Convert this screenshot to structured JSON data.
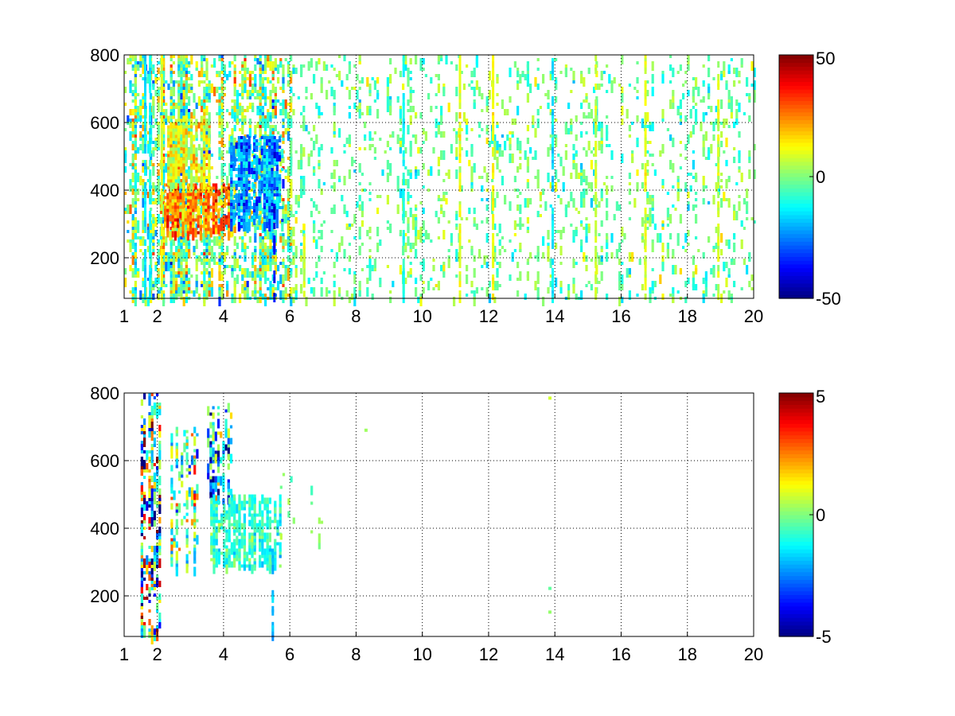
{
  "chart_data": [
    {
      "type": "heatmap",
      "colormap": "jet",
      "title": "",
      "xlabel": "",
      "ylabel": "",
      "xlim": [
        1,
        20
      ],
      "ylim": [
        80,
        800
      ],
      "x_ticks": [
        "1",
        "2",
        "4",
        "6",
        "8",
        "10",
        "12",
        "14",
        "16",
        "18",
        "20"
      ],
      "y_ticks": [
        "200",
        "400",
        "600",
        "800"
      ],
      "grid": true,
      "colorbar": {
        "range": [
          -50,
          50
        ],
        "ticks": [
          "50",
          "0",
          "-50"
        ]
      },
      "features": [
        {
          "x_range": [
            1,
            6
          ],
          "y_range": [
            80,
            800
          ],
          "mean": 0,
          "spread": 20,
          "coverage": 0.55,
          "description_level": "dense"
        },
        {
          "x_range": [
            2.2,
            4.2
          ],
          "y_range": [
            270,
            420
          ],
          "mean": 25,
          "spread": 12,
          "coverage": 0.8
        },
        {
          "x_range": [
            2.3,
            3.6
          ],
          "y_range": [
            420,
            620
          ],
          "mean": 10,
          "spread": 10,
          "coverage": 0.55
        },
        {
          "x_range": [
            4.2,
            5.8
          ],
          "y_range": [
            300,
            560
          ],
          "mean": -22,
          "spread": 12,
          "coverage": 0.75
        },
        {
          "x_range": [
            6,
            20
          ],
          "y_range": [
            80,
            800
          ],
          "mean": -2,
          "spread": 10,
          "coverage": 0.12
        }
      ],
      "vertical_streaks": [
        {
          "x": 1.6,
          "value": -15
        },
        {
          "x": 1.75,
          "value": -12
        },
        {
          "x": 2.1,
          "value": 10
        },
        {
          "x": 5.5,
          "value": -40,
          "y_range": [
            80,
            360
          ]
        },
        {
          "x": 6.4,
          "value": 8,
          "y_range": [
            80,
            300
          ]
        },
        {
          "x": 9.4,
          "value": -10
        },
        {
          "x": 11.1,
          "value": 10
        },
        {
          "x": 12.1,
          "value": 12
        },
        {
          "x": 13.9,
          "value": -15
        },
        {
          "x": 15.2,
          "value": 8
        },
        {
          "x": 16.7,
          "value": 10
        },
        {
          "x": 18.9,
          "value": 8
        }
      ]
    },
    {
      "type": "heatmap",
      "colormap": "jet",
      "title": "",
      "xlabel": "",
      "ylabel": "",
      "xlim": [
        1,
        20
      ],
      "ylim": [
        80,
        800
      ],
      "x_ticks": [
        "1",
        "2",
        "4",
        "6",
        "8",
        "10",
        "12",
        "14",
        "16",
        "18",
        "20"
      ],
      "y_ticks": [
        "200",
        "400",
        "600",
        "800"
      ],
      "grid": true,
      "colorbar": {
        "range": [
          -5,
          5
        ],
        "ticks": [
          "5",
          "0",
          "-5"
        ]
      },
      "features": [
        {
          "x_range": [
            1.5,
            2.1
          ],
          "y_range": [
            80,
            800
          ],
          "mean": 0,
          "spread": 4.5,
          "coverage": 0.45
        },
        {
          "x_range": [
            2.4,
            3.2
          ],
          "y_range": [
            280,
            700
          ],
          "mean": 0,
          "spread": 2.5,
          "coverage": 0.3
        },
        {
          "x_range": [
            3.5,
            4.2
          ],
          "y_range": [
            480,
            780
          ],
          "mean": -1.5,
          "spread": 2.5,
          "coverage": 0.3
        },
        {
          "x_range": [
            3.6,
            5.7
          ],
          "y_range": [
            290,
            500
          ],
          "mean": -0.8,
          "spread": 0.8,
          "coverage": 0.55
        },
        {
          "x_range": [
            5.7,
            7.0
          ],
          "y_range": [
            350,
            620
          ],
          "mean": 0,
          "spread": 0.6,
          "coverage": 0.04
        }
      ],
      "isolated_points": [
        {
          "x": 13.85,
          "y": 785,
          "value": 0.8
        },
        {
          "x": 13.85,
          "y": 222,
          "value": -0.3
        },
        {
          "x": 13.85,
          "y": 152,
          "value": 0.2
        },
        {
          "x": 8.3,
          "y": 690,
          "value": 0.3
        }
      ],
      "vertical_streaks": [
        {
          "x": 5.45,
          "value": -2,
          "y_range": [
            80,
            330
          ]
        }
      ]
    }
  ]
}
